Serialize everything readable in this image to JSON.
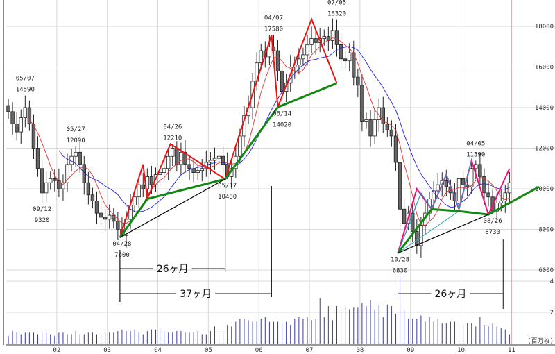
{
  "chart_data": {
    "type": "candlestick",
    "title": "",
    "period": "monthly",
    "start": "2001-01",
    "x_tick_labels": [
      "02",
      "03",
      "04",
      "05",
      "06",
      "07",
      "08",
      "09",
      "10",
      "11"
    ],
    "y_tick_labels": [
      "18000",
      "16000",
      "14000",
      "12000",
      "10000",
      "8000",
      "6000"
    ],
    "y_ticks": [
      18000,
      16000,
      14000,
      12000,
      10000,
      8000,
      6000
    ],
    "ylim": [
      5500,
      19300
    ],
    "volume_tick_labels": [
      "4",
      "2"
    ],
    "volume_ticks": [
      4,
      2
    ],
    "volume_unit_label": "(百万枚)",
    "close": [
      13800,
      13200,
      12800,
      13500,
      14000,
      13200,
      12000,
      11000,
      9800,
      10300,
      10500,
      10400,
      10000,
      10300,
      11200,
      11600,
      11800,
      11200,
      10300,
      9700,
      9400,
      8800,
      8600,
      8500,
      8700,
      8400,
      8000,
      7700,
      8500,
      9200,
      9600,
      10200,
      10000,
      10600,
      10200,
      10700,
      10800,
      11000,
      11600,
      12000,
      11200,
      11800,
      11200,
      11000,
      10800,
      10900,
      11000,
      11300,
      11400,
      11500,
      11600,
      11200,
      10600,
      11000,
      11600,
      12600,
      13600,
      14000,
      15300,
      16200,
      16800,
      16500,
      17000,
      16800,
      15800,
      14800,
      15200,
      16000,
      16100,
      16400,
      16600,
      17100,
      17400,
      17200,
      17400,
      17500,
      17300,
      17800,
      17100,
      16400,
      16300,
      16700,
      15500,
      15100,
      13300,
      13400,
      12600,
      13400,
      14000,
      13200,
      12900,
      12600,
      11300,
      9000,
      8300,
      8800,
      7900,
      7200,
      8200,
      8800,
      9500,
      9900,
      10200,
      10400,
      10100,
      9800,
      9400,
      10500,
      10200,
      10100,
      11000,
      11200,
      10600,
      9800,
      9600,
      8900,
      9300,
      9400,
      9800,
      10300
    ],
    "volume": [
      0.5,
      0.8,
      0.7,
      0.6,
      0.7,
      0.7,
      0.7,
      0.6,
      0.7,
      0.7,
      0.6,
      0.5,
      0.7,
      0.7,
      0.6,
      0.6,
      0.8,
      0.6,
      0.6,
      0.7,
      0.7,
      0.6,
      0.6,
      0.7,
      0.7,
      0.7,
      0.8,
      0.9,
      0.8,
      0.8,
      0.9,
      0.7,
      0.6,
      0.8,
      0.9,
      0.9,
      1.0,
      0.8,
      0.7,
      0.7,
      0.8,
      0.8,
      0.7,
      0.7,
      0.7,
      0.8,
      0.6,
      0.6,
      0.8,
      1.1,
      0.8,
      0.8,
      1.2,
      1.1,
      1.4,
      1.6,
      1.6,
      1.5,
      1.4,
      1.4,
      1.6,
      1.7,
      1.4,
      1.4,
      1.4,
      1.3,
      1.4,
      1.2,
      1.6,
      1.7,
      1.6,
      1.7,
      1.5,
      1.6,
      2.9,
      1.7,
      2.4,
      1.5,
      2.4,
      2.2,
      2.3,
      2.2,
      2.3,
      2.3,
      2.6,
      2.4,
      2.8,
      2.2,
      2.5,
      1.7,
      2.5,
      2.4,
      1.9,
      4.3,
      2.1,
      1.6,
      1.6,
      1.6,
      1.8,
      1.4,
      1.7,
      1.4,
      1.6,
      1.3,
      1.3,
      1.4,
      1.4,
      1.2,
      1.2,
      1.3,
      1.3,
      1.1,
      1.7,
      1.2,
      1.1,
      1.3,
      1.1,
      1.0,
      0.9,
      0.6
    ],
    "moving_averages": [
      {
        "name": "short",
        "period": 6,
        "color": "#e03030"
      },
      {
        "name": "long",
        "period": 13,
        "color": "#2020e0"
      }
    ],
    "extremes": [
      {
        "date": "05/07",
        "value": "14590",
        "month": 4,
        "price": 14590,
        "pos": "above"
      },
      {
        "date": "09/12",
        "value": "9320",
        "month": 8,
        "price": 9320,
        "pos": "below"
      },
      {
        "date": "05/27",
        "value": "12090",
        "month": 16,
        "price": 12090,
        "pos": "above"
      },
      {
        "date": "04/28",
        "value": "7600",
        "month": 27,
        "price": 7600,
        "pos": "below"
      },
      {
        "date": "04/26",
        "value": "12210",
        "month": 39,
        "price": 12210,
        "pos": "above"
      },
      {
        "date": "05/17",
        "value": "10480",
        "month": 52,
        "price": 10480,
        "pos": "below"
      },
      {
        "date": "04/07",
        "value": "17580",
        "month": 63,
        "price": 17580,
        "pos": "above"
      },
      {
        "date": "06/14",
        "value": "14020",
        "month": 65,
        "price": 14020,
        "pos": "below"
      },
      {
        "date": "07/05",
        "value": "18320",
        "month": 78,
        "price": 18320,
        "pos": "above"
      },
      {
        "date": "10/28",
        "value": "6830",
        "month": 93,
        "price": 6830,
        "pos": "below"
      },
      {
        "date": "04/05",
        "value": "11390",
        "month": 111,
        "price": 11390,
        "pos": "above"
      },
      {
        "date": "08/26",
        "value": "8730",
        "month": 115,
        "price": 8730,
        "pos": "below"
      }
    ],
    "trendlines": [
      {
        "name": "red-wave-1",
        "color": "#ee1111",
        "width": 2,
        "points": [
          [
            26.5,
            7600
          ],
          [
            32,
            11200
          ],
          [
            33,
            9500
          ],
          [
            38.5,
            12210
          ],
          [
            51.5,
            10480
          ]
        ]
      },
      {
        "name": "red-wave-2",
        "color": "#ee1111",
        "width": 2,
        "points": [
          [
            51.5,
            10480
          ],
          [
            62.5,
            17580
          ],
          [
            64,
            14020
          ],
          [
            72,
            18350
          ],
          [
            78,
            15200
          ]
        ]
      },
      {
        "name": "green-support-1",
        "color": "#118811",
        "width": 3,
        "points": [
          [
            26.5,
            7600
          ],
          [
            33,
            9500
          ],
          [
            51.5,
            10480
          ],
          [
            64,
            14020
          ],
          [
            78,
            15200
          ]
        ]
      },
      {
        "name": "black-support-1",
        "color": "#000000",
        "width": 1.2,
        "points": [
          [
            26.5,
            7600
          ],
          [
            51.5,
            10480
          ]
        ]
      },
      {
        "name": "pink-wave",
        "color": "#ee1177",
        "width": 2,
        "points": [
          [
            92.5,
            6830
          ],
          [
            97,
            10000
          ],
          [
            100.5,
            9000
          ],
          [
            104,
            10700
          ],
          [
            107,
            9000
          ],
          [
            110,
            11390
          ],
          [
            114,
            8730
          ],
          [
            119,
            11000
          ]
        ]
      },
      {
        "name": "cyan-fan-1",
        "color": "#2299cc",
        "width": 1.2,
        "points": [
          [
            92.5,
            6830
          ],
          [
            98,
            9800
          ],
          [
            100.5,
            9000
          ],
          [
            104,
            10700
          ],
          [
            107,
            9000
          ],
          [
            110,
            11390
          ]
        ]
      },
      {
        "name": "cyan-fan-2",
        "color": "#33aaaa",
        "width": 1,
        "points": [
          [
            92.5,
            6830
          ],
          [
            107,
            8900
          ]
        ]
      },
      {
        "name": "green-support-2",
        "color": "#118811",
        "width": 3,
        "points": [
          [
            92.5,
            6830
          ],
          [
            100.5,
            9000
          ],
          [
            107,
            8900
          ],
          [
            114,
            8730
          ],
          [
            126,
            10100
          ]
        ]
      },
      {
        "name": "black-support-2",
        "color": "#000000",
        "width": 1.2,
        "points": [
          [
            92.5,
            6830
          ],
          [
            114,
            8730
          ]
        ]
      }
    ],
    "measurements": [
      {
        "label": "26ヶ月",
        "from_month": 26.5,
        "to_month": 51.5
      },
      {
        "label": "37ヶ月",
        "from_month": 26.5,
        "to_month": 62.5
      },
      {
        "label": "26ヶ月",
        "from_month": 92.5,
        "to_month": 117.5
      }
    ],
    "colors": {
      "up_body": "#ffffff",
      "down_body": "#666666",
      "volume": "#3a3aa0",
      "grid": "#d8d8d8",
      "current_marker": "#e08080"
    }
  }
}
